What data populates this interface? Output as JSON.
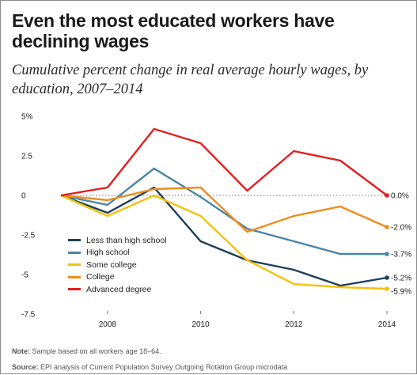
{
  "title": "Even the most educated workers have declining wages",
  "subtitle": "Cumulative percent change in real average hourly wages, by education, 2007–2014",
  "note_label": "Note:",
  "note_text": "Sample based on all workers age 18–64.",
  "source_label": "Source:",
  "source_text": "EPI analysis of Current Population Survey Outgoing Rotation Group microdata",
  "chart_data": {
    "type": "line",
    "title": "Even the most educated workers have declining wages",
    "subtitle": "Cumulative percent change in real average hourly wages, by education, 2007–2014",
    "xlabel": "",
    "ylabel": "",
    "x": [
      2007,
      2008,
      2009,
      2010,
      2011,
      2012,
      2013,
      2014
    ],
    "xlim": [
      2007,
      2014
    ],
    "ylim": [
      -7.5,
      5
    ],
    "x_ticks": [
      2008,
      2010,
      2012,
      2014
    ],
    "y_ticks": [
      {
        "value": 5,
        "label": "5%"
      },
      {
        "value": 2.5,
        "label": "2.5"
      },
      {
        "value": 0,
        "label": "0"
      },
      {
        "value": -2.5,
        "label": "-2.5"
      },
      {
        "value": -5,
        "label": "-5"
      },
      {
        "value": -7.5,
        "label": "-7.5"
      }
    ],
    "zero_line": "dotted",
    "grid": false,
    "legend_position": "bottom-left",
    "series": [
      {
        "name": "Less than high school",
        "color": "#1e3f5a",
        "values": [
          0,
          -1.1,
          0.5,
          -2.9,
          -4.1,
          -4.7,
          -5.7,
          -5.2
        ],
        "end_label": "-5.2%"
      },
      {
        "name": "High school",
        "color": "#4a86a8",
        "values": [
          0,
          -0.6,
          1.7,
          -0.1,
          -2.1,
          -2.9,
          -3.7,
          -3.7
        ],
        "end_label": "-3.7%"
      },
      {
        "name": "Some college",
        "color": "#f4c20d",
        "values": [
          0,
          -1.3,
          0.0,
          -1.3,
          -4.1,
          -5.6,
          -5.8,
          -5.9
        ],
        "end_label": "-5.9%"
      },
      {
        "name": "College",
        "color": "#f08c1c",
        "values": [
          0,
          -0.3,
          0.4,
          0.5,
          -2.3,
          -1.3,
          -0.7,
          -2.0
        ],
        "end_label": "-2.0%"
      },
      {
        "name": "Advanced degree",
        "color": "#e31e1e",
        "values": [
          0,
          0.5,
          4.2,
          3.3,
          0.3,
          2.8,
          2.2,
          0.0
        ],
        "end_label": "0.0%"
      }
    ]
  }
}
